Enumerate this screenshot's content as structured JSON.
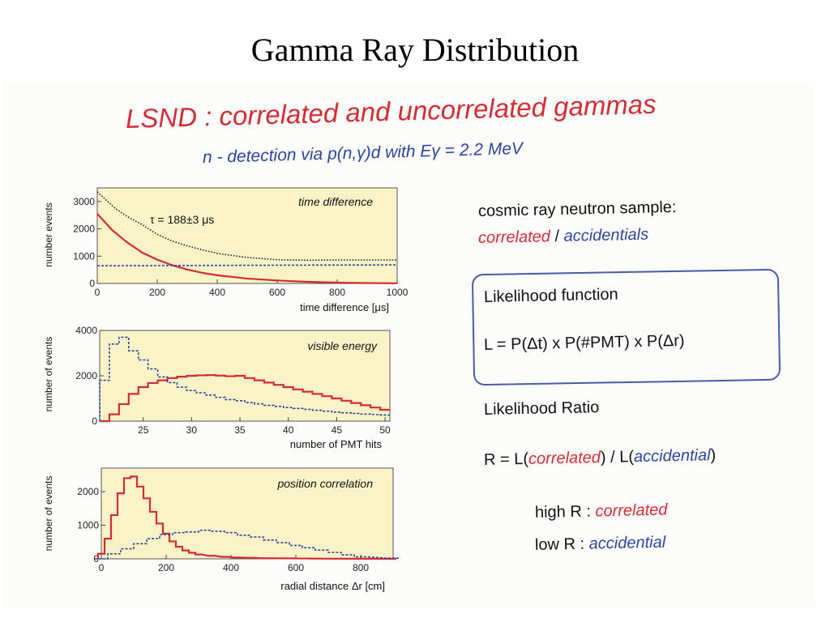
{
  "slide_title": "Gamma Ray Distribution",
  "heading": "LSND : correlated and uncorrelated gammas",
  "subheading": "n - detection via p(n,γ)d with Eγ = 2.2 MeV",
  "right_panel": {
    "sample_line": "cosmic ray neutron sample:",
    "correlated": "correlated",
    "slash": "/",
    "accidentials": "accidentials",
    "likelihood_title": "Likelihood function",
    "likelihood_formula": "L = P(Δt) x P(#PMT) x P(Δr)",
    "ratio_title": "Likelihood Ratio",
    "ratio_prefix": "R =  L(",
    "ratio_correlated": "correlated",
    "ratio_mid": ") / L(",
    "ratio_accidential": "accidential",
    "ratio_suffix": ")",
    "high_label": "high R :",
    "high_value": "correlated",
    "low_label": "low R  :",
    "low_value": "accidential"
  },
  "colors": {
    "correlated": "#d42c34",
    "accidental": "#2c46a0",
    "plot_bg": "#fbf3c8",
    "cosmic": "#1a1a1a"
  },
  "chart_data": [
    {
      "type": "line",
      "xlabel": "time difference [μs]",
      "ylabel": "number events",
      "annotation": "time difference",
      "fit_label": "τ = 188±3 μs",
      "xlim": [
        0,
        1000
      ],
      "ylim": [
        0,
        3500
      ],
      "xticks": [
        0,
        200,
        400,
        600,
        800,
        1000
      ],
      "yticks": [
        0,
        1000,
        2000,
        3000
      ],
      "series": [
        {
          "key": "total",
          "style": "dotted",
          "color": "#1a1a1a",
          "x": [
            0,
            20,
            60,
            100,
            150,
            200,
            250,
            300,
            350,
            400,
            500,
            600,
            700,
            800,
            900,
            1000
          ],
          "values": [
            3350,
            3150,
            2750,
            2450,
            2150,
            1800,
            1550,
            1380,
            1230,
            1100,
            950,
            870,
            850,
            860,
            860,
            860
          ]
        },
        {
          "key": "correlated",
          "style": "solid",
          "color": "#d42c34",
          "x": [
            0,
            50,
            100,
            150,
            200,
            250,
            300,
            350,
            400,
            500,
            600,
            700,
            800,
            900,
            1000
          ],
          "values": [
            2550,
            1950,
            1500,
            1130,
            870,
            670,
            510,
            390,
            300,
            180,
            110,
            60,
            30,
            15,
            5
          ]
        },
        {
          "key": "accidental",
          "style": "dashed",
          "color": "#2c46a0",
          "x": [
            0,
            1000
          ],
          "values": [
            650,
            680
          ]
        }
      ]
    },
    {
      "type": "line",
      "xlabel": "number of PMT hits",
      "ylabel": "number of events",
      "annotation": "visible energy",
      "xlim": [
        20.5,
        50.5
      ],
      "ylim": [
        0,
        4000
      ],
      "xticks": [
        25,
        30,
        35,
        40,
        45,
        50
      ],
      "yticks": [
        0,
        2000,
        4000
      ],
      "series": [
        {
          "key": "correlated",
          "style": "step",
          "color": "#d42c34",
          "x": [
            21,
            22,
            23,
            24,
            25,
            26,
            27,
            28,
            29,
            30,
            31,
            32,
            33,
            34,
            35,
            36,
            37,
            38,
            39,
            40,
            41,
            42,
            43,
            44,
            45,
            46,
            47,
            48,
            49,
            50
          ],
          "values": [
            0,
            300,
            750,
            1200,
            1500,
            1680,
            1800,
            1900,
            1960,
            2000,
            2020,
            2030,
            2010,
            1980,
            2000,
            1900,
            1800,
            1700,
            1600,
            1500,
            1400,
            1300,
            1200,
            1100,
            1000,
            900,
            800,
            700,
            600,
            500
          ]
        },
        {
          "key": "accidental",
          "style": "step-dashed",
          "color": "#2c46a0",
          "x": [
            21,
            22,
            23,
            24,
            25,
            26,
            27,
            28,
            29,
            30,
            31,
            32,
            33,
            34,
            35,
            36,
            37,
            38,
            39,
            40,
            41,
            42,
            43,
            44,
            45,
            46,
            47,
            48,
            49,
            50
          ],
          "values": [
            1800,
            3400,
            3700,
            3100,
            2700,
            2300,
            1950,
            1700,
            1500,
            1350,
            1250,
            1150,
            1050,
            950,
            900,
            820,
            760,
            700,
            650,
            600,
            560,
            520,
            480,
            440,
            400,
            370,
            340,
            310,
            290,
            270
          ]
        }
      ]
    },
    {
      "type": "line",
      "xlabel": "radial distance Δr [cm]",
      "ylabel": "number of events",
      "annotation": "position correlation",
      "xlim": [
        0,
        900
      ],
      "ylim": [
        0,
        2700
      ],
      "xticks": [
        0,
        200,
        400,
        600,
        800
      ],
      "yticks": [
        0,
        1000,
        2000
      ],
      "series": [
        {
          "key": "correlated",
          "style": "step",
          "color": "#d42c34",
          "x": [
            0,
            20,
            40,
            60,
            80,
            100,
            120,
            140,
            160,
            180,
            200,
            220,
            240,
            260,
            280,
            300,
            340,
            380,
            420,
            460,
            500,
            560,
            620,
            700,
            800,
            900
          ],
          "values": [
            150,
            600,
            1300,
            1950,
            2400,
            2450,
            2150,
            1800,
            1400,
            1050,
            750,
            520,
            360,
            250,
            180,
            130,
            90,
            60,
            40,
            30,
            20,
            15,
            10,
            5,
            3,
            0
          ]
        },
        {
          "key": "accidental",
          "style": "step-dashed",
          "color": "#2c46a0",
          "x": [
            0,
            40,
            80,
            120,
            160,
            200,
            240,
            280,
            320,
            360,
            400,
            440,
            480,
            520,
            560,
            600,
            640,
            680,
            720,
            760,
            800,
            900
          ],
          "values": [
            0,
            150,
            300,
            450,
            600,
            720,
            780,
            800,
            850,
            820,
            780,
            700,
            650,
            560,
            480,
            400,
            330,
            260,
            190,
            120,
            60,
            20
          ]
        }
      ]
    }
  ]
}
